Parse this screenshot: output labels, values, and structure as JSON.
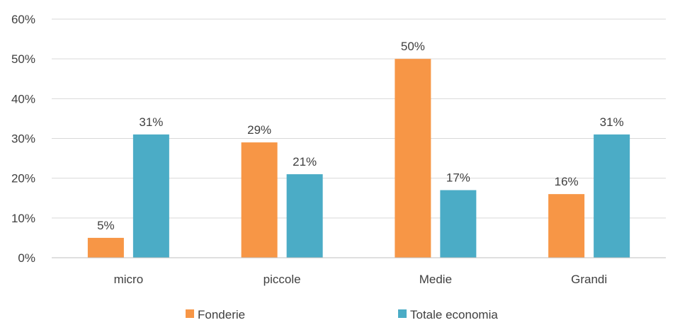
{
  "chart_data": {
    "type": "bar",
    "categories": [
      "micro",
      "piccole",
      "Medie",
      "Grandi"
    ],
    "series": [
      {
        "name": "Fonderie",
        "values": [
          5,
          29,
          50,
          16
        ],
        "labels": [
          "5%",
          "29%",
          "50%",
          "16%"
        ],
        "color": "#F79646"
      },
      {
        "name": "Totale economia",
        "values": [
          31,
          21,
          17,
          31
        ],
        "labels": [
          "31%",
          "21%",
          "17%",
          "31%"
        ],
        "color": "#4BACC6"
      }
    ],
    "ylim": [
      0,
      60
    ],
    "yticks": [
      {
        "value": 0,
        "label": "0%"
      },
      {
        "value": 10,
        "label": "10%"
      },
      {
        "value": 20,
        "label": "20%"
      },
      {
        "value": 30,
        "label": "30%"
      },
      {
        "value": 40,
        "label": "40%"
      },
      {
        "value": 50,
        "label": "50%"
      },
      {
        "value": 60,
        "label": "60%"
      }
    ],
    "grid": true,
    "legend_position": "bottom"
  }
}
